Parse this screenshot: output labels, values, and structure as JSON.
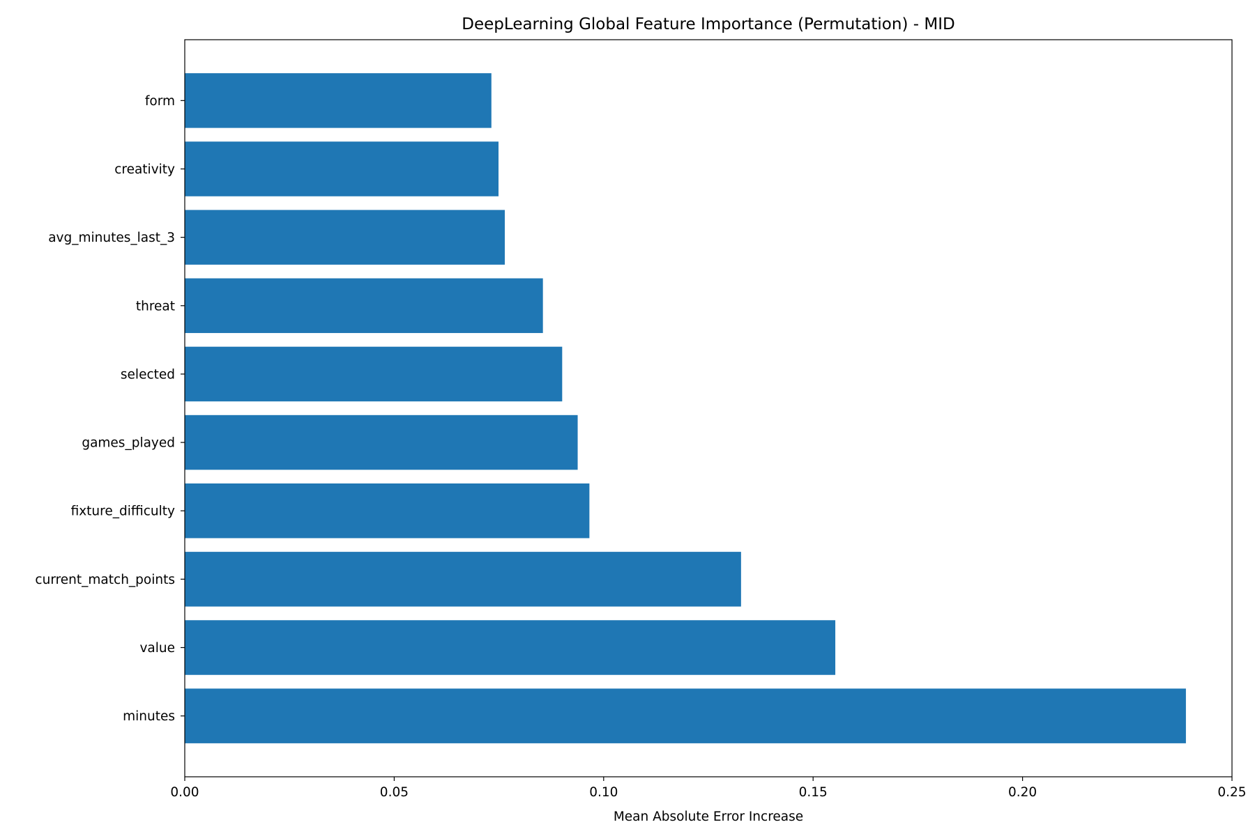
{
  "chart_data": {
    "type": "bar",
    "orientation": "horizontal",
    "title": "DeepLearning Global Feature Importance (Permutation) - MID",
    "xlabel": "Mean Absolute Error Increase",
    "ylabel": "",
    "categories": [
      "minutes",
      "value",
      "current_match_points",
      "fixture_difficulty",
      "games_played",
      "selected",
      "threat",
      "avg_minutes_last_3",
      "creativity",
      "form"
    ],
    "values": [
      0.239,
      0.1553,
      0.1328,
      0.0966,
      0.0938,
      0.0901,
      0.0855,
      0.0764,
      0.0749,
      0.0732
    ],
    "xlim": [
      0,
      0.25
    ],
    "xticks": [
      0.0,
      0.05,
      0.1,
      0.15,
      0.2,
      0.25
    ],
    "xtick_labels": [
      "0.00",
      "0.05",
      "0.10",
      "0.15",
      "0.20",
      "0.25"
    ],
    "bar_color": "#1f77b4",
    "grid": false,
    "legend": "none"
  }
}
